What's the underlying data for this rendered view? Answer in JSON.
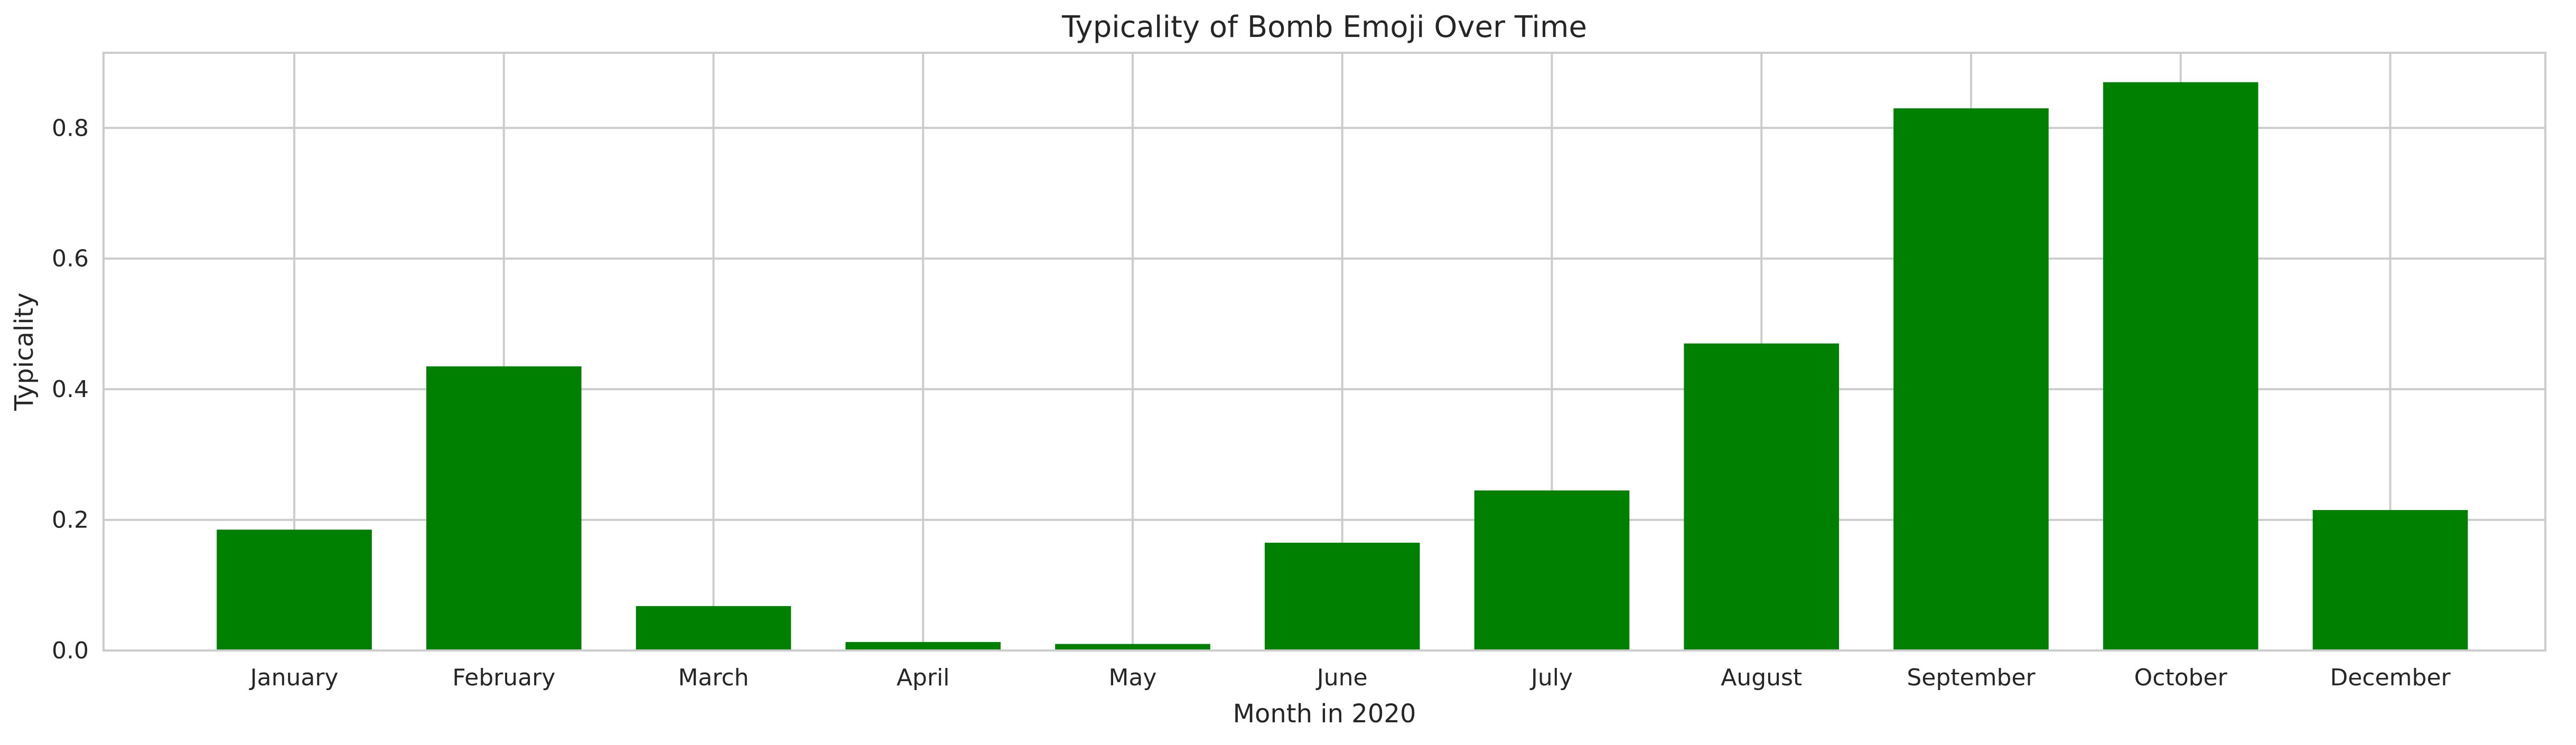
{
  "chart_data": {
    "type": "bar",
    "title": "Typicality of Bomb Emoji Over Time",
    "xlabel": "Month in 2020",
    "ylabel": "Typicality",
    "categories": [
      "January",
      "February",
      "March",
      "April",
      "May",
      "June",
      "July",
      "August",
      "September",
      "October",
      "December"
    ],
    "values": [
      0.185,
      0.435,
      0.068,
      0.013,
      0.01,
      0.165,
      0.245,
      0.47,
      0.83,
      0.87,
      0.215
    ],
    "ylim": [
      0,
      0.915
    ],
    "yticks": [
      0.0,
      0.2,
      0.4,
      0.6,
      0.8
    ],
    "ytick_labels": [
      "0.0",
      "0.2",
      "0.4",
      "0.6",
      "0.8"
    ],
    "bar_color": "#008000",
    "grid": true,
    "legend": "none"
  }
}
